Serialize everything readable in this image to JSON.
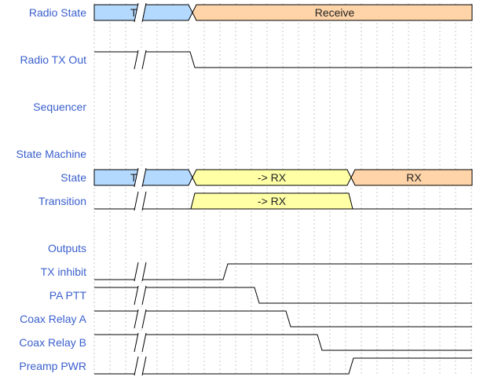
{
  "colors": {
    "label": "#3a5fcd",
    "tx": "#b3d9ff",
    "transition": "#ffffa6",
    "receive": "#ffd4a8",
    "line": "#000000",
    "grid": "#c8c8c8"
  },
  "signals": [
    {
      "label": "Radio State"
    },
    {
      "label": "Radio TX Out"
    },
    {
      "label": "Sequencer"
    },
    {
      "label": "State Machine"
    },
    {
      "label": "State"
    },
    {
      "label": "Transition"
    },
    {
      "label": ""
    },
    {
      "label": "Outputs"
    },
    {
      "label": "TX inhibit"
    },
    {
      "label": "PA PTT"
    },
    {
      "label": "Coax Relay A"
    },
    {
      "label": "Coax Relay B"
    },
    {
      "label": "Preamp PWR"
    }
  ],
  "radio_state": {
    "tx": "TX",
    "receive": "Receive"
  },
  "state": {
    "tx": "TX",
    "transition": "-> RX",
    "rx": "RX"
  },
  "transition": {
    "label": "-> RX"
  }
}
